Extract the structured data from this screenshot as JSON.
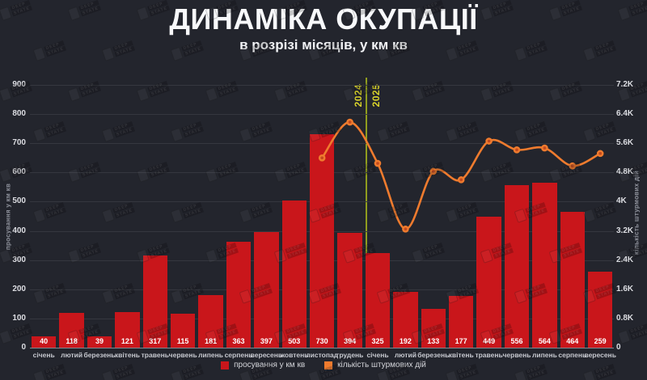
{
  "title": "ДИНАМІКА ОКУПАЦІЇ",
  "subtitle": "в розрізі місяців, у км кв",
  "watermark": {
    "line1": "DEEP",
    "line2": "STATE"
  },
  "colors": {
    "background": "#23252d",
    "bar": "#c9161b",
    "line": "#ef7b2e",
    "year_divider": "#909d1e",
    "year_label": "#d9d32b"
  },
  "chart_data": {
    "type": "bar",
    "title": "ДИНАМІКА ОКУПАЦІЇ",
    "subtitle": "в розрізі місяців, у км кв",
    "grid": "horizontal",
    "legend_position": "bottom",
    "categories": [
      "січень",
      "лютий",
      "березень",
      "квітень",
      "травень",
      "червень",
      "липень",
      "серпень",
      "вересень",
      "жовтень",
      "листопад",
      "грудень",
      "січень",
      "лютий",
      "березень",
      "квітень",
      "травень",
      "червень",
      "липень",
      "серпень",
      "вересень"
    ],
    "series": [
      {
        "name": "просування у км кв",
        "type": "bar",
        "axis": "left",
        "color": "#c9161b",
        "values": [
          40,
          118,
          39,
          121,
          317,
          115,
          181,
          363,
          397,
          503,
          730,
          394,
          325,
          192,
          133,
          177,
          449,
          556,
          564,
          464,
          259
        ]
      },
      {
        "name": "кількість штурмових дій",
        "type": "line",
        "axis": "right",
        "color": "#ef7b2e",
        "values": [
          null,
          null,
          null,
          null,
          null,
          null,
          null,
          null,
          null,
          null,
          5200,
          6180,
          5050,
          3250,
          4830,
          4600,
          5660,
          5420,
          5470,
          4980,
          5320
        ]
      }
    ],
    "left_axis": {
      "label": "просування у км кв",
      "min": 0,
      "max": 900,
      "ticks": [
        "900",
        "800",
        "700",
        "600",
        "500",
        "400",
        "300",
        "200",
        "100",
        "0"
      ]
    },
    "right_axis": {
      "label": "кількість штурмових дій",
      "min": 0,
      "max": 7200,
      "ticks": [
        "7.2K",
        "6.4K",
        "5.6K",
        "4.8K",
        "4K",
        "3.2K",
        "2.4K",
        "1.6K",
        "0.8K",
        "0"
      ]
    },
    "year_divider": {
      "between": [
        "грудень",
        "січень"
      ],
      "left_label": "2024",
      "right_label": "2025"
    }
  }
}
